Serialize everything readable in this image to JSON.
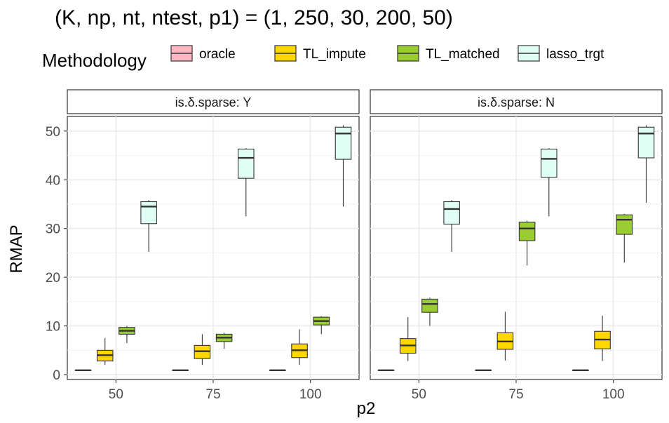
{
  "title": "(K, np, nt, ntest, p1) = (1, 250, 30, 200, 50)",
  "legend": {
    "title": "Methodology",
    "items": [
      {
        "label": "oracle",
        "color": "#FFB6C1"
      },
      {
        "label": "TL_impute",
        "color": "#FFD700"
      },
      {
        "label": "TL_matched",
        "color": "#9ACD32"
      },
      {
        "label": "lasso_trgt",
        "color": "#E0FFF5"
      }
    ]
  },
  "axes": {
    "xlabel": "p2",
    "ylabel": "RMAP",
    "yticks": [
      "0",
      "10",
      "20",
      "30",
      "40",
      "50"
    ],
    "ylim": [
      -1,
      53
    ],
    "categories": [
      "50",
      "75",
      "100"
    ]
  },
  "chart_data": {
    "type": "boxplot",
    "grid": true,
    "legend_position": "top",
    "series_order": [
      "oracle",
      "TL_impute",
      "TL_matched",
      "lasso_trgt"
    ],
    "panels": [
      {
        "strip": "is.δ.sparse: Y",
        "groups": [
          {
            "category": "50",
            "boxes": [
              {
                "series": "oracle",
                "min": 0.9,
                "q1": 0.9,
                "median": 0.9,
                "q3": 0.9,
                "max": 0.9
              },
              {
                "series": "TL_impute",
                "min": 2.0,
                "q1": 2.8,
                "median": 4.0,
                "q3": 5.0,
                "max": 7.5
              },
              {
                "series": "TL_matched",
                "min": 6.5,
                "q1": 8.3,
                "median": 9.0,
                "q3": 9.7,
                "max": 10.0
              },
              {
                "series": "lasso_trgt",
                "min": 25.2,
                "q1": 31.0,
                "median": 34.5,
                "q3": 35.5,
                "max": 35.8
              }
            ]
          },
          {
            "category": "75",
            "boxes": [
              {
                "series": "oracle",
                "min": 0.9,
                "q1": 0.9,
                "median": 0.9,
                "q3": 0.9,
                "max": 0.9
              },
              {
                "series": "TL_impute",
                "min": 2.0,
                "q1": 3.3,
                "median": 4.8,
                "q3": 6.0,
                "max": 8.3
              },
              {
                "series": "TL_matched",
                "min": 5.3,
                "q1": 6.8,
                "median": 7.6,
                "q3": 8.3,
                "max": 8.6
              },
              {
                "series": "lasso_trgt",
                "min": 32.5,
                "q1": 40.3,
                "median": 44.5,
                "q3": 46.3,
                "max": 46.5
              }
            ]
          },
          {
            "category": "100",
            "boxes": [
              {
                "series": "oracle",
                "min": 0.9,
                "q1": 0.9,
                "median": 0.9,
                "q3": 0.9,
                "max": 0.9
              },
              {
                "series": "TL_impute",
                "min": 2.0,
                "q1": 3.5,
                "median": 5.0,
                "q3": 6.3,
                "max": 9.3
              },
              {
                "series": "TL_matched",
                "min": 8.3,
                "q1": 10.2,
                "median": 11.0,
                "q3": 11.8,
                "max": 12.0
              },
              {
                "series": "lasso_trgt",
                "min": 34.5,
                "q1": 44.2,
                "median": 49.5,
                "q3": 50.8,
                "max": 51.2
              }
            ]
          }
        ]
      },
      {
        "strip": "is.δ.sparse: N",
        "groups": [
          {
            "category": "50",
            "boxes": [
              {
                "series": "oracle",
                "min": 0.9,
                "q1": 0.9,
                "median": 0.9,
                "q3": 0.9,
                "max": 0.9
              },
              {
                "series": "TL_impute",
                "min": 2.8,
                "q1": 4.4,
                "median": 6.0,
                "q3": 7.4,
                "max": 11.8
              },
              {
                "series": "TL_matched",
                "min": 10.0,
                "q1": 12.8,
                "median": 14.5,
                "q3": 15.5,
                "max": 15.8
              },
              {
                "series": "lasso_trgt",
                "min": 25.2,
                "q1": 30.9,
                "median": 34.0,
                "q3": 35.5,
                "max": 35.8
              }
            ]
          },
          {
            "category": "75",
            "boxes": [
              {
                "series": "oracle",
                "min": 0.9,
                "q1": 0.9,
                "median": 0.9,
                "q3": 0.9,
                "max": 0.9
              },
              {
                "series": "TL_impute",
                "min": 2.9,
                "q1": 5.2,
                "median": 6.8,
                "q3": 8.6,
                "max": 12.9
              },
              {
                "series": "TL_matched",
                "min": 22.4,
                "q1": 27.5,
                "median": 30.0,
                "q3": 31.3,
                "max": 31.6
              },
              {
                "series": "lasso_trgt",
                "min": 32.5,
                "q1": 40.5,
                "median": 44.3,
                "q3": 46.3,
                "max": 46.5
              }
            ]
          },
          {
            "category": "100",
            "boxes": [
              {
                "series": "oracle",
                "min": 0.9,
                "q1": 0.9,
                "median": 0.9,
                "q3": 0.9,
                "max": 0.9
              },
              {
                "series": "TL_impute",
                "min": 2.8,
                "q1": 5.3,
                "median": 7.2,
                "q3": 8.9,
                "max": 12.1
              },
              {
                "series": "TL_matched",
                "min": 23.0,
                "q1": 28.8,
                "median": 31.8,
                "q3": 32.8,
                "max": 33.0
              },
              {
                "series": "lasso_trgt",
                "min": 35.3,
                "q1": 44.5,
                "median": 49.5,
                "q3": 50.8,
                "max": 51.2
              }
            ]
          }
        ]
      }
    ]
  }
}
